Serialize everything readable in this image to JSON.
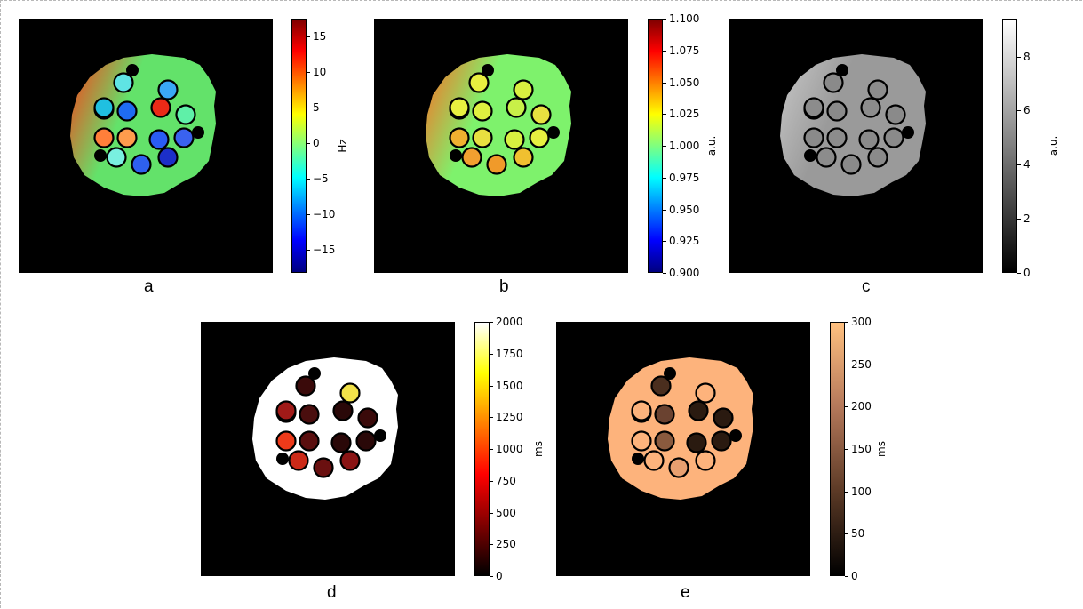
{
  "chart_data": [
    {
      "type": "heatmap",
      "caption": "a",
      "colorbar": {
        "unit": "Hz",
        "range": [
          -18.2,
          17.5
        ],
        "ticks": [
          "15",
          "10",
          "5",
          "0",
          "−5",
          "−10",
          "−15"
        ],
        "tick_values": [
          15,
          10,
          5,
          0,
          -5,
          -10,
          -15
        ],
        "colormap": [
          "#00007f",
          "#0000ff",
          "#007fff",
          "#00ffff",
          "#7fff7f",
          "#ffff00",
          "#ff7f00",
          "#ff0000",
          "#7f0000"
        ]
      },
      "phantom": {
        "background": "#63e26a",
        "left_tint": "#ff3a16",
        "vial_fills": [
          "#5fe4e4",
          "#3aa8f6",
          "#7ff2c9",
          "#1f6cf2",
          "#ea2a17",
          "#5ff0a8",
          "#ff7f3a",
          "#ff9c4d",
          "#2a5cf4",
          "#3a62ef",
          "#79f0e0",
          "#2e60ef",
          "#1c2fc8",
          "#20c0e0"
        ]
      }
    },
    {
      "type": "heatmap",
      "caption": "b",
      "colorbar": {
        "unit": "a.u.",
        "range": [
          0.9,
          1.1
        ],
        "ticks": [
          "1.100",
          "1.075",
          "1.050",
          "1.025",
          "1.000",
          "0.975",
          "0.950",
          "0.925",
          "0.900"
        ],
        "tick_values": [
          1.1,
          1.075,
          1.05,
          1.025,
          1.0,
          0.975,
          0.95,
          0.925,
          0.9
        ],
        "colormap": [
          "#00007f",
          "#0000ff",
          "#007fff",
          "#00ffff",
          "#7fff7f",
          "#ffff00",
          "#ff7f00",
          "#ff0000",
          "#7f0000"
        ]
      },
      "phantom": {
        "background": "#7ef26c",
        "left_tint": "#ff6a22",
        "vial_fills": [
          "#e8f040",
          "#d9ef40",
          "#f0c030",
          "#e0f040",
          "#c8f048",
          "#e8e040",
          "#f0b030",
          "#e8e040",
          "#d8f040",
          "#e8f040",
          "#f2a030",
          "#f09a2a",
          "#f0c030",
          "#e8f040"
        ]
      }
    },
    {
      "type": "heatmap",
      "caption": "c",
      "colorbar": {
        "unit": "a.u.",
        "range": [
          0,
          9.4
        ],
        "ticks": [
          "8",
          "6",
          "4",
          "2",
          "0"
        ],
        "tick_values": [
          8,
          6,
          4,
          2,
          0
        ],
        "colormap": [
          "#000000",
          "#ffffff"
        ]
      },
      "phantom": {
        "background": "#9a9a9a",
        "left_tint": "#c8c8c8",
        "vial_fills": [
          "#8a8a8a",
          "#8c8c8c",
          "#8a8a8a",
          "#8a8a8a",
          "#8c8c8c",
          "#8a8a8a",
          "#8a8a8a",
          "#8c8c8c",
          "#8a8a8a",
          "#8a8a8a",
          "#8c8c8c",
          "#8a8a8a",
          "#8a8a8a",
          "#8c8c8c"
        ]
      }
    },
    {
      "type": "heatmap",
      "caption": "d",
      "colorbar": {
        "unit": "ms",
        "range": [
          0,
          2000
        ],
        "ticks": [
          "2000",
          "1750",
          "1500",
          "1250",
          "1000",
          "750",
          "500",
          "250",
          "0"
        ],
        "tick_values": [
          2000,
          1750,
          1500,
          1250,
          1000,
          750,
          500,
          250,
          0
        ],
        "colormap": [
          "#000000",
          "#7f0000",
          "#ff0000",
          "#ff8000",
          "#ffff00",
          "#ffffff"
        ]
      },
      "phantom": {
        "background": "#ffffff",
        "left_tint": "#ffffff",
        "vial_fills": [
          "#3a0a0a",
          "#f2e24a",
          "#f0782a",
          "#4a0e0e",
          "#2a0808",
          "#3a0a0a",
          "#ee3a1a",
          "#5a0e0e",
          "#2a0808",
          "#2a0808",
          "#cc2a18",
          "#6a1010",
          "#8a1414",
          "#a01a18"
        ]
      }
    },
    {
      "type": "heatmap",
      "caption": "e",
      "colorbar": {
        "unit": "ms",
        "range": [
          0,
          300
        ],
        "ticks": [
          "300",
          "250",
          "200",
          "150",
          "100",
          "50",
          "0"
        ],
        "tick_values": [
          300,
          250,
          200,
          150,
          100,
          50,
          0
        ],
        "colormap": [
          "#000000",
          "#5c3a26",
          "#b4785a",
          "#ffc07f"
        ]
      },
      "phantom": {
        "background": "#fdb37c",
        "left_tint": "#fdb37c",
        "vial_fills": [
          "#4a2e1e",
          "#fdb37c",
          "#fdb37c",
          "#6a4230",
          "#2a1a10",
          "#2a1a10",
          "#fdb37c",
          "#8a5a3e",
          "#2a1a10",
          "#2a1a10",
          "#fdb37c",
          "#e8a070",
          "#fdb37c",
          "#fdb37c"
        ]
      }
    }
  ]
}
